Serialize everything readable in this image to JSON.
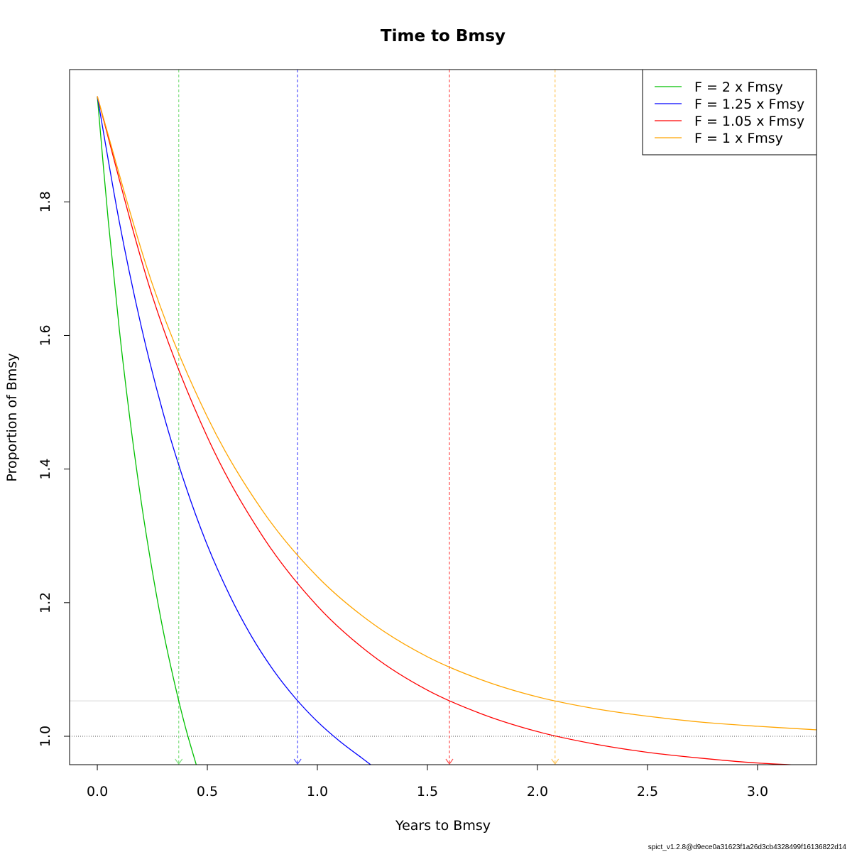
{
  "chart_data": {
    "type": "line",
    "title": "Time to Bmsy",
    "xlabel": "Years to Bmsy",
    "ylabel": "Proportion of Bmsy",
    "xlim": [
      -0.126,
      3.268
    ],
    "ylim": [
      0.9575,
      1.998
    ],
    "x_ticks": [
      0.0,
      0.5,
      1.0,
      1.5,
      2.0,
      2.5,
      3.0
    ],
    "x_tick_labels": [
      "0.0",
      "0.5",
      "1.0",
      "1.5",
      "2.0",
      "2.5",
      "3.0"
    ],
    "y_ticks": [
      1.0,
      1.2,
      1.4,
      1.6,
      1.8
    ],
    "y_tick_labels": [
      "1.0",
      "1.2",
      "1.4",
      "1.6",
      "1.8"
    ],
    "grid": false,
    "legend_position": "top-right",
    "reference_lines": {
      "horizontal_dotted": 1.0,
      "horizontal_light": 1.053
    },
    "series": [
      {
        "name": "F = 2 x Fmsy",
        "color": "#00c000",
        "vline_color": "#80e080",
        "time_to_target": 0.37,
        "x": [
          0,
          0.05,
          0.1,
          0.15,
          0.2,
          0.25,
          0.3,
          0.35,
          0.4,
          0.45
        ],
        "y": [
          1.958,
          1.771,
          1.609,
          1.47,
          1.35,
          1.247,
          1.157,
          1.081,
          1.014,
          0.957
        ]
      },
      {
        "name": "F = 1.25 x Fmsy",
        "color": "#0000ff",
        "vline_color": "#5050ff",
        "time_to_target": 0.91,
        "x": [
          0,
          0.1,
          0.2,
          0.3,
          0.4,
          0.5,
          0.6,
          0.7,
          0.8,
          0.9,
          1.0,
          1.1,
          1.2
        ],
        "y": [
          1.958,
          1.77,
          1.613,
          1.483,
          1.376,
          1.286,
          1.212,
          1.15,
          1.099,
          1.057,
          1.022,
          0.993,
          0.968
        ]
      },
      {
        "name": "F = 1.05 x Fmsy",
        "color": "#ff0000",
        "vline_color": "#ff5050",
        "time_to_target": 1.6,
        "x": [
          0,
          0.25,
          0.5,
          0.75,
          1.0,
          1.25,
          1.5,
          1.75,
          2.0,
          2.25,
          2.5,
          2.75,
          3.0,
          3.25
        ],
        "y": [
          1.958,
          1.659,
          1.448,
          1.3,
          1.195,
          1.121,
          1.069,
          1.033,
          1.007,
          0.989,
          0.976,
          0.967,
          0.96,
          0.956
        ]
      },
      {
        "name": "F = 1 x Fmsy",
        "color": "#ffa500",
        "vline_color": "#ffc860",
        "time_to_target": 2.08,
        "x": [
          0,
          0.25,
          0.5,
          0.75,
          1.0,
          1.25,
          1.5,
          1.75,
          2.0,
          2.25,
          2.5,
          2.75,
          3.0,
          3.25
        ],
        "y": [
          1.958,
          1.677,
          1.478,
          1.338,
          1.239,
          1.169,
          1.119,
          1.084,
          1.059,
          1.042,
          1.03,
          1.021,
          1.015,
          1.01
        ]
      }
    ]
  },
  "footer": "spict_v1.2.8@d9ece0a31623f1a26d3cb4328499f16136822d14"
}
